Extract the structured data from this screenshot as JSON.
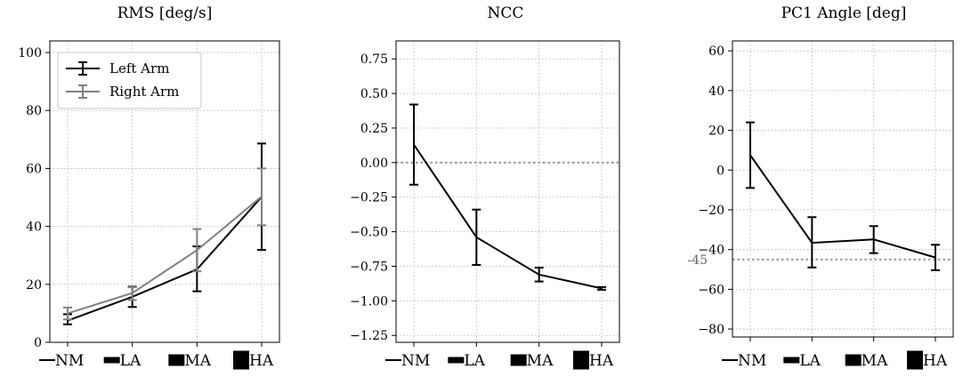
{
  "chart_data": [
    {
      "type": "line",
      "title": "RMS [deg/s]",
      "xlabel": "",
      "ylabel": "",
      "categories": [
        "NM",
        "LA",
        "MA",
        "HA"
      ],
      "ylim": [
        0,
        104
      ],
      "yticks": [
        0,
        20,
        40,
        60,
        80,
        100
      ],
      "grid": true,
      "legend": {
        "placement": "top-left"
      },
      "series": [
        {
          "name": "Left Arm",
          "color": "#000000",
          "values": [
            7.5,
            15.7,
            25.2,
            50.2
          ],
          "err_low": [
            6.2,
            12.2,
            17.6,
            31.9
          ],
          "err_high": [
            9.7,
            19.2,
            33.1,
            68.6
          ]
        },
        {
          "name": "Right Arm",
          "color": "#808080",
          "values": [
            10.0,
            17.0,
            31.8,
            50.3
          ],
          "err_low": [
            7.9,
            14.6,
            24.5,
            40.4
          ],
          "err_high": [
            12.0,
            19.0,
            39.1,
            60.0
          ]
        }
      ]
    },
    {
      "type": "line",
      "title": "NCC",
      "xlabel": "",
      "ylabel": "",
      "categories": [
        "NM",
        "LA",
        "MA",
        "HA"
      ],
      "ylim": [
        -1.3,
        0.88
      ],
      "yticks": [
        -1.25,
        -1.0,
        -0.75,
        -0.5,
        -0.25,
        0.0,
        0.25,
        0.5,
        0.75
      ],
      "ytick_labels": [
        "−1.25",
        "−1.00",
        "−0.75",
        "−0.50",
        "−0.25",
        "0.00",
        "0.25",
        "0.50",
        "0.75"
      ],
      "reference_line": 0.0,
      "grid": true,
      "series": [
        {
          "color": "#000000",
          "values": [
            0.13,
            -0.54,
            -0.81,
            -0.91
          ],
          "err_low": [
            -0.16,
            -0.74,
            -0.86,
            -0.92
          ],
          "err_high": [
            0.42,
            -0.34,
            -0.76,
            -0.9
          ]
        }
      ]
    },
    {
      "type": "line",
      "title": "PC1 Angle [deg]",
      "xlabel": "",
      "ylabel": "",
      "categories": [
        "NM",
        "LA",
        "MA",
        "HA"
      ],
      "ylim": [
        -84,
        65
      ],
      "yticks": [
        -80,
        -60,
        -40,
        -20,
        0,
        20,
        40,
        60
      ],
      "ytick_labels": [
        "−80",
        "−60",
        "−40",
        "−20",
        "0",
        "20",
        "40",
        "60"
      ],
      "reference_line": -45,
      "reference_label": "-45",
      "grid": true,
      "series": [
        {
          "color": "#000000",
          "values": [
            7.5,
            -36.6,
            -34.9,
            -44.0
          ],
          "err_low": [
            -9.0,
            -49.0,
            -41.8,
            -50.4
          ],
          "err_high": [
            24.0,
            -23.7,
            -28.2,
            -37.6
          ]
        }
      ]
    }
  ]
}
